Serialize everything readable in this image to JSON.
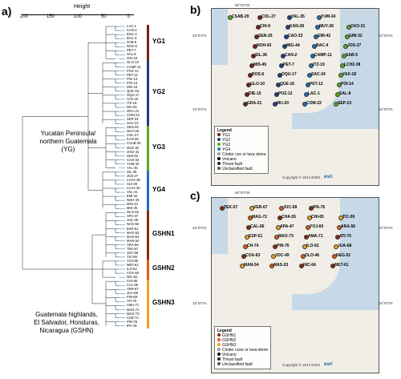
{
  "panel_a": {
    "label": "a)",
    "axis_title": "Height",
    "ticks": [
      "200",
      "150",
      "100",
      "50",
      "0"
    ],
    "leaves": [
      "LAC-1",
      "CAN-2",
      "ENC-3",
      "BAC-4",
      "SAB-5",
      "ROS-6",
      "PET-7",
      "SAL-8",
      "OXI-10",
      "GLO-10",
      "CAMP-11",
      "POZ-12",
      "PET-12",
      "POI-13",
      "POI-14",
      "DIE-15",
      "QUE-16",
      "OQU-17",
      "YAX-18",
      "ITZ-19",
      "MU-20",
      "GRA-21",
      "COM-22",
      "SEP-23",
      "SAC-24",
      "SEN-25",
      "MUY-26",
      "COL-27",
      "KAN-28",
      "CSAB-29",
      "MUZ-30",
      "OXO-31",
      "GMI-32",
      "CAO-33",
      "YUM-34",
      "YAL-35",
      "SIL-36",
      "JOS-37",
      "LCH2-38",
      "SUI-39",
      "LCH1-40",
      "VAL-41",
      "EMI-42",
      "NOH-43",
      "MIG-44",
      "MIS-45",
      "OLO-46",
      "APA-47",
      "JUC-49",
      "NAG-50",
      "ESP-51",
      "MAG-52",
      "MAS-53",
      "MAN-54",
      "ARA-56",
      "TEK-57",
      "JUC-58",
      "TIC-59",
      "YOJ-60",
      "MET-61",
      "ILO-62",
      "COA-63",
      "NIC-64",
      "CHI-65",
      "CAL-66",
      "VER-67",
      "JUA-68",
      "PIN-69",
      "ATI-70",
      "AMA-71",
      "MAG-72",
      "MAO-73",
      "CHZ-74",
      "PIN-75",
      "IPA-76"
    ],
    "groups": [
      {
        "label": "YG1",
        "color": "#7a1f0f"
      },
      {
        "label": "YG2",
        "color": "#1a3f8a"
      },
      {
        "label": "YG3",
        "color": "#5ca91e"
      },
      {
        "label": "YG4",
        "color": "#1e6fb8"
      },
      {
        "label": "GSHN1",
        "color": "#8a2a10"
      },
      {
        "label": "GSHN2",
        "color": "#e05a1a"
      },
      {
        "label": "GSHN3",
        "color": "#f0a21e"
      }
    ],
    "region_yg": [
      "Yucatán Peninsula/",
      "northern Guatemala",
      "(YG)"
    ],
    "region_gshn": [
      "Guatemala highlands,",
      "El Salvador, Honduras,",
      "Nicaragua (GSHN)"
    ]
  },
  "panel_b": {
    "label": "b)",
    "coords": {
      "top_left": "90°0'0\"W",
      "top_right": "",
      "left_top": "20°0'0\"N",
      "right_top": "20°0'0\"N",
      "left_bottom": "15°0'0\"N",
      "right_bottom": "15°0'0\"N"
    },
    "sites": [
      "CSAB-29",
      "COL-27",
      "YAL-35",
      "YUM-34",
      "OXO-31",
      "CHI-9",
      "KAN-28",
      "MUY-26",
      "GMI-32",
      "SEN-25",
      "CAO-33",
      "EMI-42",
      "JOS-37",
      "NOH-43",
      "MIG-44",
      "BAC-4",
      "SAB-5",
      "SIL-36",
      "CAN-2",
      "CAMP-11",
      "LCH2-38",
      "MIS-45",
      "PET-7",
      "ITZ-19",
      "YAX-18",
      "ROS-6",
      "OQU-17",
      "SAC-24",
      "POI-14",
      "GLO-10",
      "QUE-16",
      "PET-12",
      "SAL-8",
      "DIE-15",
      "POZ-12",
      "LAC-1",
      "SEP-23",
      "GRA-21",
      "MU-20",
      "COM-22"
    ],
    "legend": {
      "title": "Legend",
      "items": [
        "YG1",
        "YG2",
        "YG3",
        "YG4",
        "Cinder con or lava dome",
        "Volcano",
        "Thrust fault",
        "Unclassified fault"
      ]
    },
    "credit": "Copyright © 2014 ESRI",
    "esri": "esri"
  },
  "panel_c": {
    "label": "c)",
    "coords": {
      "top_left": "90°0'0\"W",
      "left_top": "20°0'0\"N",
      "right_top": "20°0'0\"N",
      "left_bottom": "15°0'0\"N",
      "right_bottom": "15°0'0\"N"
    },
    "sites": [
      "TEK-57",
      "VER-67",
      "JUC-58",
      "IPA-76",
      "TIC-59",
      "MAG-72",
      "CHA-55",
      "CHI-65",
      "ARA-56",
      "CAL-66",
      "APA-47",
      "YOJ-60",
      "ATI-70",
      "ESP-51",
      "MAO-73",
      "AMA-71",
      "JUA-68",
      "CH-74",
      "PIN-75",
      "ILO-62",
      "NEG-52",
      "COA-63",
      "JOC-49",
      "OLO-46",
      "MET-61",
      "MAN-54",
      "MAS-53",
      "NIC-64"
    ],
    "legend": {
      "title": "Legend",
      "items": [
        "GSHN1",
        "GSHN2",
        "GSHN3",
        "Cinder cone or lava dome",
        "Volcano",
        "Thrust fault",
        "Unclassified fault"
      ]
    },
    "credit": "Copyright © 2014 ESRI",
    "esri": "esri"
  },
  "colors": {
    "yg1": "#7a1f0f",
    "yg2": "#1a3f8a",
    "yg3": "#5ca91e",
    "yg4": "#1e6fb8",
    "gshn1": "#8a2a10",
    "gshn2": "#e05a1a",
    "gshn3": "#f0a21e",
    "water": "#c7d9e7",
    "land": "#f1eee7"
  }
}
